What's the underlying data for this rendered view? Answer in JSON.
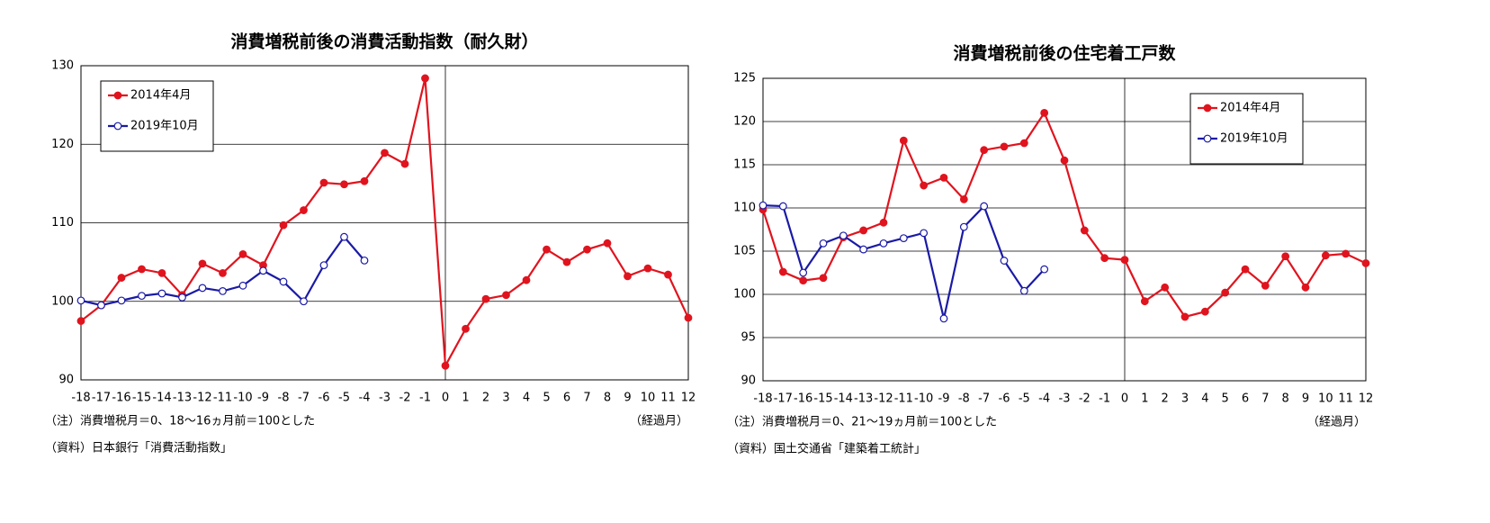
{
  "chart_data": [
    {
      "type": "line",
      "title": "消費増税前後の消費活動指数（耐久財）",
      "xlabel": "（経過月）",
      "notes": [
        "（注）消費増税月＝0、18～16ヵ月前＝100とした",
        "（資料）日本銀行「消費活動指数」"
      ],
      "x": [
        -18,
        -17,
        -16,
        -15,
        -14,
        -13,
        -12,
        -11,
        -10,
        -9,
        -8,
        -7,
        -6,
        -5,
        -4,
        -3,
        -2,
        -1,
        0,
        1,
        2,
        3,
        4,
        5,
        6,
        7,
        8,
        9,
        10,
        11,
        12
      ],
      "xlim": [
        -18,
        12
      ],
      "xticks": [
        -18,
        -17,
        -16,
        -15,
        -14,
        -13,
        -12,
        -11,
        -10,
        -9,
        -8,
        -7,
        -6,
        -5,
        -4,
        -3,
        -2,
        -1,
        0,
        1,
        2,
        3,
        4,
        5,
        6,
        7,
        8,
        9,
        10,
        11,
        12
      ],
      "ylim": [
        90,
        130
      ],
      "yticks": [
        90,
        100,
        110,
        120,
        130
      ],
      "grid": true,
      "legend": "upper left",
      "series": [
        {
          "name": "2014年4月",
          "color": "#e0141e",
          "markerfacecolor": "#e0141e",
          "values": [
            97.5,
            99.5,
            103,
            104.1,
            103.6,
            100.8,
            104.8,
            103.6,
            106,
            104.6,
            109.7,
            111.6,
            115.1,
            114.9,
            115.3,
            118.9,
            117.5,
            128.4,
            91.8,
            96.5,
            100.3,
            100.8,
            102.7,
            106.6,
            105,
            106.6,
            107.4,
            103.2,
            104.2,
            103.4,
            97.9
          ]
        },
        {
          "name": "2019年10月",
          "color": "#1a1aa6",
          "markerfacecolor": "#ffffff",
          "values": [
            100.1,
            99.5,
            100.1,
            100.7,
            101,
            100.5,
            101.7,
            101.3,
            102,
            103.9,
            102.5,
            100,
            104.6,
            108.2,
            105.2,
            null,
            null,
            null,
            null,
            null,
            null,
            null,
            null,
            null,
            null,
            null,
            null,
            null,
            null,
            null,
            null
          ]
        }
      ]
    },
    {
      "type": "line",
      "title": "消費増税前後の住宅着工戸数",
      "xlabel": "（経過月）",
      "notes": [
        "（注）消費増税月＝0、21～19ヵ月前＝100とした",
        "（資料）国土交通省「建築着工統計」"
      ],
      "x": [
        -18,
        -17,
        -16,
        -15,
        -14,
        -13,
        -12,
        -11,
        -10,
        -9,
        -8,
        -7,
        -6,
        -5,
        -4,
        -3,
        -2,
        -1,
        0,
        1,
        2,
        3,
        4,
        5,
        6,
        7,
        8,
        9,
        10,
        11,
        12
      ],
      "xlim": [
        -18,
        12
      ],
      "xticks": [
        -18,
        -17,
        -16,
        -15,
        -14,
        -13,
        -12,
        -11,
        -10,
        -9,
        -8,
        -7,
        -6,
        -5,
        -4,
        -3,
        -2,
        -1,
        0,
        1,
        2,
        3,
        4,
        5,
        6,
        7,
        8,
        9,
        10,
        11,
        12
      ],
      "ylim": [
        90,
        125
      ],
      "yticks": [
        90,
        95,
        100,
        105,
        110,
        115,
        120,
        125
      ],
      "grid": true,
      "legend": "upper right",
      "series": [
        {
          "name": "2014年4月",
          "color": "#e0141e",
          "markerfacecolor": "#e0141e",
          "values": [
            109.8,
            102.6,
            101.6,
            101.9,
            106.6,
            107.4,
            108.3,
            117.8,
            112.6,
            113.5,
            111,
            116.7,
            117.1,
            117.5,
            121,
            115.5,
            107.4,
            104.2,
            104,
            99.2,
            100.8,
            97.4,
            98,
            100.2,
            102.9,
            101,
            104.4,
            100.8,
            104.5,
            104.7,
            103.6
          ]
        },
        {
          "name": "2019年10月",
          "color": "#1a1aa6",
          "markerfacecolor": "#ffffff",
          "values": [
            110.3,
            110.2,
            102.5,
            105.9,
            106.8,
            105.2,
            105.9,
            106.5,
            107.1,
            97.2,
            107.8,
            110.2,
            103.9,
            100.4,
            102.9,
            null,
            null,
            null,
            null,
            null,
            null,
            null,
            null,
            null,
            null,
            null,
            null,
            null,
            null,
            null,
            null
          ]
        }
      ]
    }
  ]
}
